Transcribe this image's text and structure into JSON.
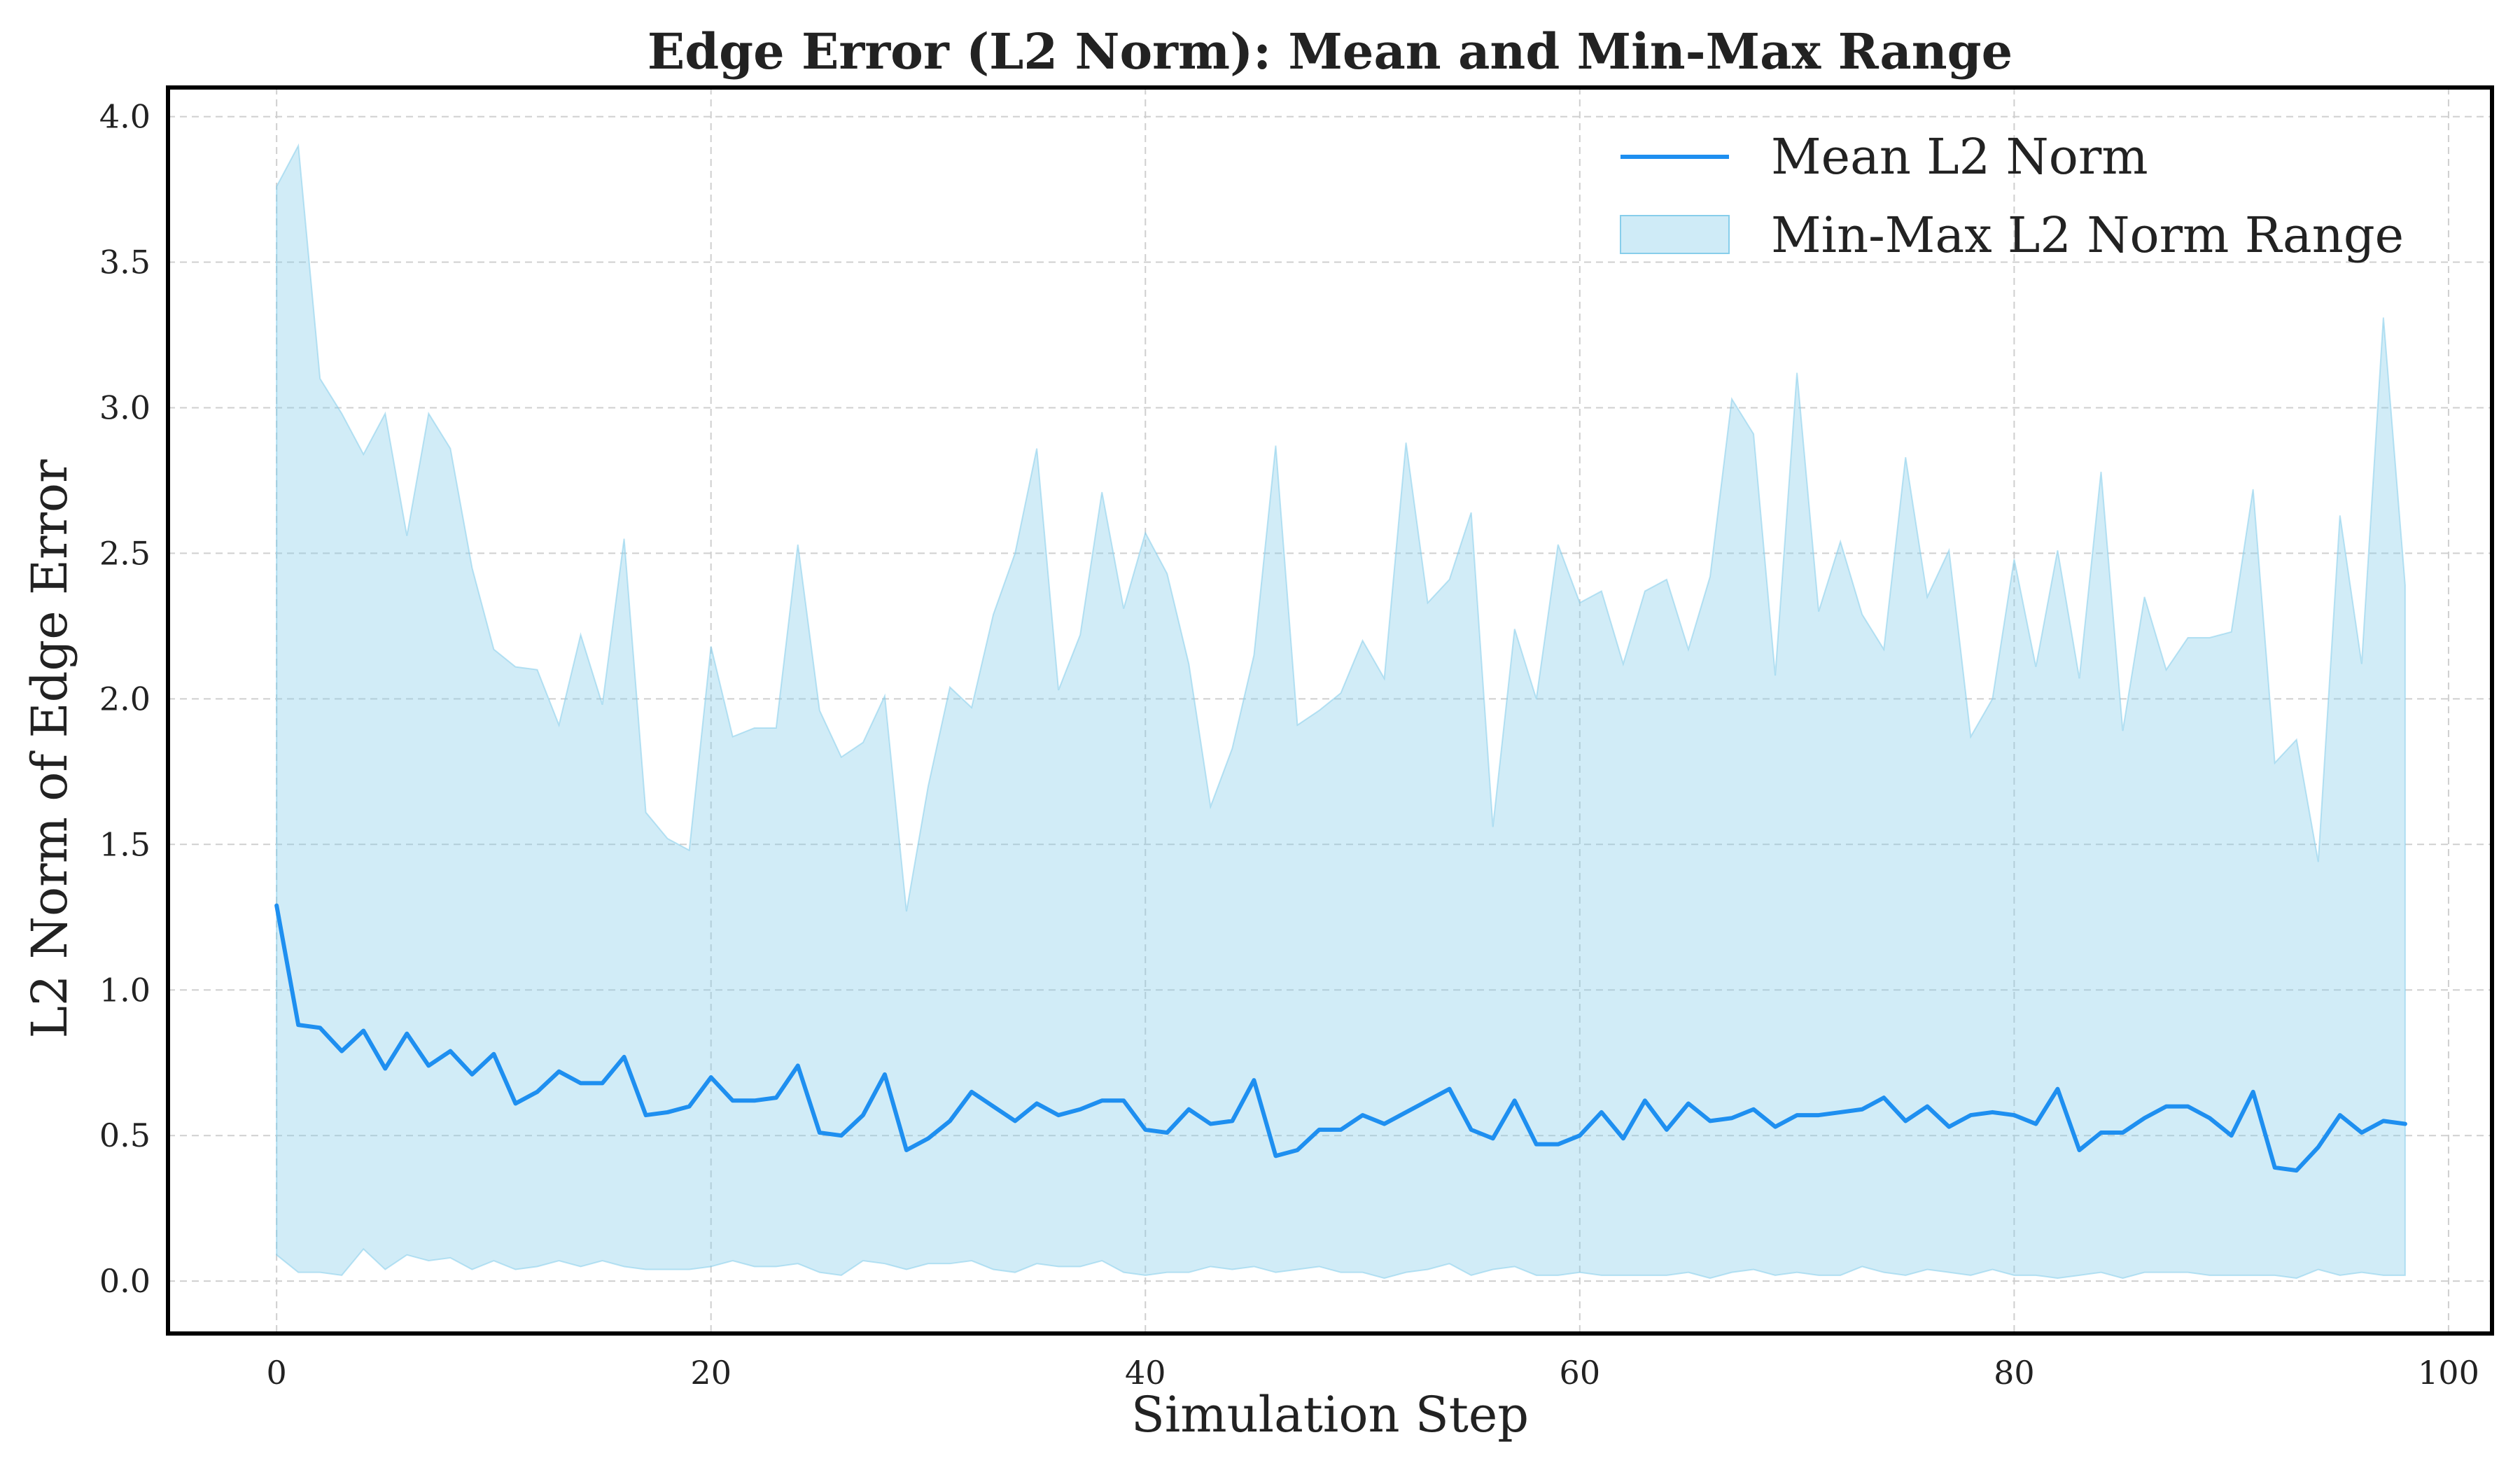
{
  "colors": {
    "mean_line": "#1e8ff0",
    "range_fill": "#87ceeb"
  },
  "chart_data": {
    "type": "line",
    "title": "Edge Error (L2 Norm): Mean and Min-Max Range",
    "xlabel": "Simulation Step",
    "ylabel": "L2 Norm of Edge Error",
    "xlim": [
      -5,
      102
    ],
    "ylim": [
      -0.18,
      4.1
    ],
    "xticks": [
      0,
      20,
      40,
      60,
      80,
      100
    ],
    "xtick_labels": [
      "0",
      "20",
      "40",
      "60",
      "80",
      "100"
    ],
    "yticks": [
      0,
      0.5,
      1,
      1.5,
      2,
      2.5,
      3,
      3.5,
      4
    ],
    "ytick_labels": [
      "0.0",
      "0.5",
      "1.0",
      "1.5",
      "2.0",
      "2.5",
      "3.0",
      "3.5",
      "4.0"
    ],
    "grid": true,
    "legend_position": "top-right",
    "series": [
      {
        "name": "Mean L2 Norm",
        "kind": "line",
        "x_start": 0,
        "values": [
          1.29,
          0.88,
          0.87,
          0.79,
          0.86,
          0.73,
          0.85,
          0.74,
          0.79,
          0.71,
          0.78,
          0.61,
          0.65,
          0.72,
          0.68,
          0.68,
          0.77,
          0.57,
          0.58,
          0.6,
          0.7,
          0.62,
          0.62,
          0.63,
          0.74,
          0.51,
          0.5,
          0.57,
          0.71,
          0.45,
          0.49,
          0.55,
          0.65,
          0.6,
          0.55,
          0.61,
          0.57,
          0.59,
          0.62,
          0.62,
          0.52,
          0.51,
          0.59,
          0.54,
          0.55,
          0.69,
          0.43,
          0.45,
          0.52,
          0.52,
          0.57,
          0.54,
          0.58,
          0.62,
          0.66,
          0.52,
          0.49,
          0.62,
          0.47,
          0.47,
          0.5,
          0.58,
          0.49,
          0.62,
          0.52,
          0.61,
          0.55,
          0.56,
          0.59,
          0.53,
          0.57,
          0.57,
          0.58,
          0.59,
          0.63,
          0.55,
          0.6,
          0.53,
          0.57,
          0.58,
          0.57,
          0.54,
          0.66,
          0.45,
          0.51,
          0.51,
          0.56,
          0.6,
          0.6,
          0.56,
          0.5,
          0.65,
          0.39,
          0.38,
          0.46,
          0.57,
          0.51,
          0.55,
          0.54
        ]
      },
      {
        "name": "Min-Max L2 Norm Range",
        "kind": "band",
        "x_start": 0,
        "min": [
          0.09,
          0.03,
          0.03,
          0.02,
          0.11,
          0.04,
          0.09,
          0.07,
          0.08,
          0.04,
          0.07,
          0.04,
          0.05,
          0.07,
          0.05,
          0.07,
          0.05,
          0.04,
          0.04,
          0.04,
          0.05,
          0.07,
          0.05,
          0.05,
          0.06,
          0.03,
          0.02,
          0.07,
          0.06,
          0.04,
          0.06,
          0.06,
          0.07,
          0.04,
          0.03,
          0.06,
          0.05,
          0.05,
          0.07,
          0.03,
          0.02,
          0.03,
          0.03,
          0.05,
          0.04,
          0.05,
          0.03,
          0.04,
          0.05,
          0.03,
          0.03,
          0.01,
          0.03,
          0.04,
          0.06,
          0.02,
          0.04,
          0.05,
          0.02,
          0.02,
          0.03,
          0.02,
          0.02,
          0.02,
          0.02,
          0.03,
          0.01,
          0.03,
          0.04,
          0.02,
          0.03,
          0.02,
          0.02,
          0.05,
          0.03,
          0.02,
          0.04,
          0.03,
          0.02,
          0.04,
          0.02,
          0.02,
          0.01,
          0.02,
          0.03,
          0.01,
          0.03,
          0.03,
          0.03,
          0.02,
          0.02,
          0.02,
          0.02,
          0.01,
          0.04,
          0.02,
          0.03,
          0.02,
          0.02
        ],
        "max": [
          3.76,
          3.9,
          3.1,
          2.98,
          2.84,
          2.98,
          2.56,
          2.98,
          2.86,
          2.45,
          2.17,
          2.11,
          2.1,
          1.91,
          2.22,
          1.98,
          2.55,
          1.61,
          1.52,
          1.48,
          2.18,
          1.87,
          1.9,
          1.9,
          2.53,
          1.96,
          1.8,
          1.85,
          2.01,
          1.27,
          1.7,
          2.04,
          1.97,
          2.29,
          2.5,
          2.86,
          2.03,
          2.22,
          2.71,
          2.31,
          2.57,
          2.43,
          2.12,
          1.63,
          1.83,
          2.15,
          2.87,
          1.91,
          1.96,
          2.02,
          2.2,
          2.07,
          2.88,
          2.33,
          2.41,
          2.64,
          1.56,
          2.24,
          2.0,
          2.53,
          2.33,
          2.37,
          2.12,
          2.37,
          2.41,
          2.17,
          2.42,
          3.03,
          2.91,
          2.08,
          3.12,
          2.3,
          2.54,
          2.29,
          2.17,
          2.83,
          2.35,
          2.51,
          1.87,
          2.0,
          2.48,
          2.11,
          2.51,
          2.07,
          2.78,
          1.89,
          2.35,
          2.1,
          2.21,
          2.21,
          2.23,
          2.72,
          1.78,
          1.86,
          1.44,
          2.63,
          2.12,
          3.31,
          2.39
        ]
      }
    ]
  }
}
